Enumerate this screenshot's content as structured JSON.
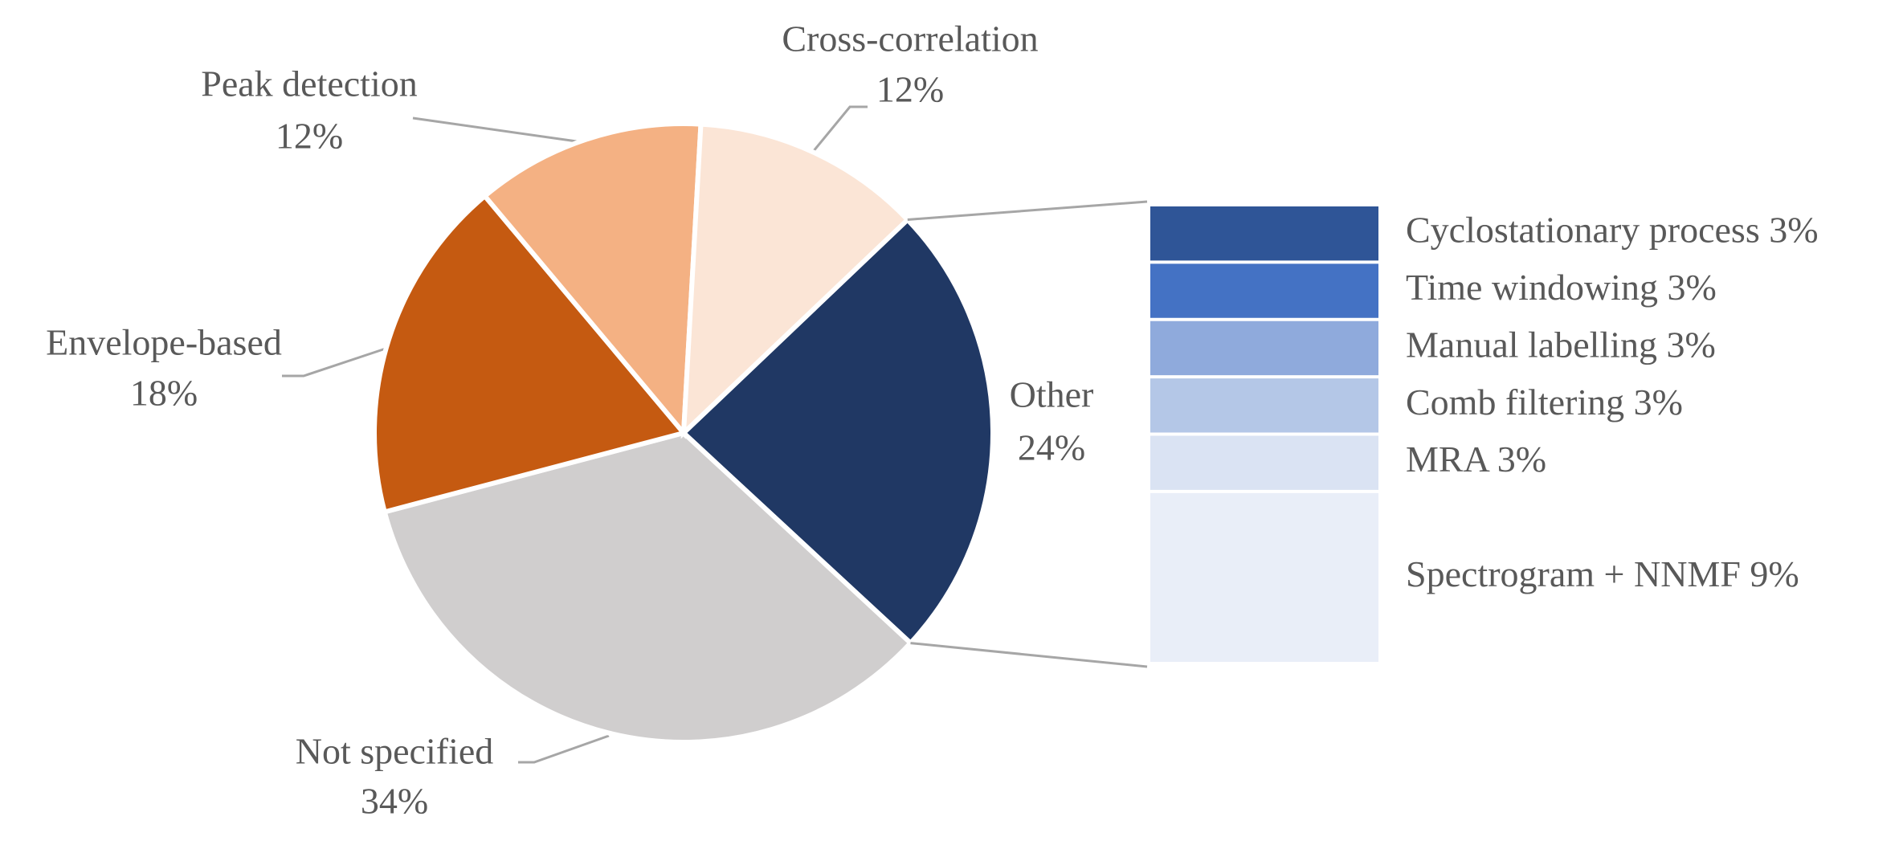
{
  "chart_data": {
    "type": "pie",
    "categories": [
      "Other",
      "Not specified",
      "Envelope-based",
      "Peak detection",
      "Cross-correlation"
    ],
    "values": [
      24,
      34,
      18,
      12,
      12
    ],
    "value_labels": [
      "24%",
      "34%",
      "18%",
      "12%",
      "12%"
    ],
    "colors": [
      "#203864",
      "#d0cece",
      "#c55a11",
      "#f4b183",
      "#fbe5d6"
    ],
    "breakdown": {
      "type": "stacked-bar",
      "categories": [
        "Cyclostationary process",
        "Time windowing",
        "Manual labelling",
        "Comb filtering",
        "MRA",
        "Spectrogram + NNMF"
      ],
      "values": [
        3,
        3,
        3,
        3,
        3,
        9
      ],
      "value_labels": [
        "3%",
        "3%",
        "3%",
        "3%",
        "3%",
        "9%"
      ],
      "colors": [
        "#2f5597",
        "#4472c4",
        "#8faadc",
        "#b4c7e7",
        "#dae3f3",
        "#e9eef8"
      ]
    }
  }
}
